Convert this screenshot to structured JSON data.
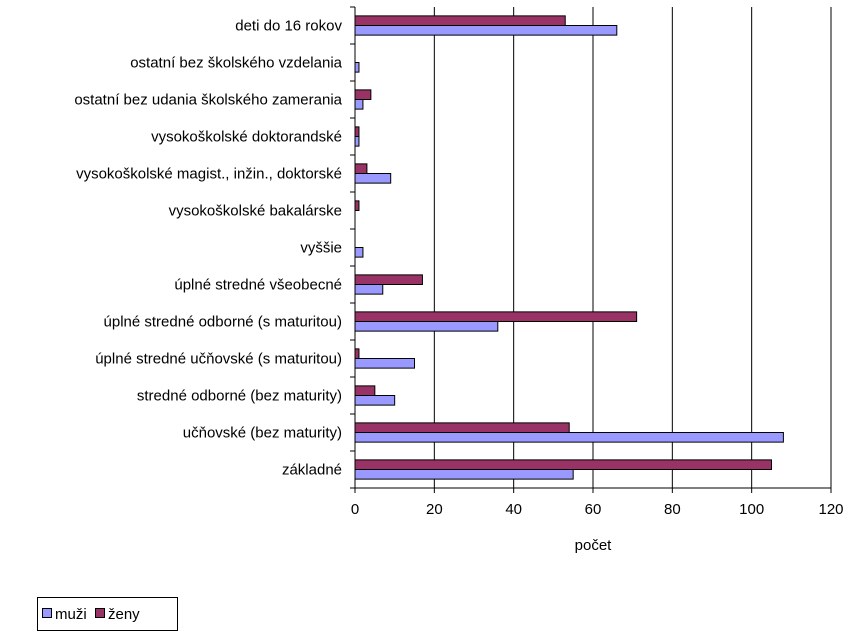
{
  "chart_data": {
    "type": "bar",
    "orientation": "horizontal",
    "title": "",
    "xlabel": "počet",
    "ylabel": "",
    "xlim": [
      0,
      120
    ],
    "xticks": [
      "0",
      "20",
      "40",
      "60",
      "80",
      "100",
      "120"
    ],
    "grid": "vertical",
    "legend_position": "bottom-left",
    "categories": [
      "deti do 16 rokov",
      "ostatní bez školského vzdelania",
      "ostatní bez udania školského zamerania",
      "vysokoškolské doktorandské",
      "vysokoškolské magist., inžin., doktorské",
      "vysokoškolské bakalárske",
      "vyššie",
      "úplné stredné všeobecné",
      "úplné stredné odborné (s maturitou)",
      "úplné stredné učňovské (s maturitou)",
      "stredné odborné (bez maturity)",
      "učňovské (bez maturity)",
      "základné"
    ],
    "series": [
      {
        "name": "muži",
        "color": "#9999ff",
        "values": [
          66,
          1,
          2,
          1,
          9,
          0,
          2,
          7,
          36,
          15,
          10,
          108,
          55
        ]
      },
      {
        "name": "ženy",
        "color": "#993366",
        "values": [
          53,
          0,
          4,
          1,
          3,
          1,
          0,
          17,
          71,
          1,
          5,
          54,
          105
        ]
      }
    ]
  }
}
